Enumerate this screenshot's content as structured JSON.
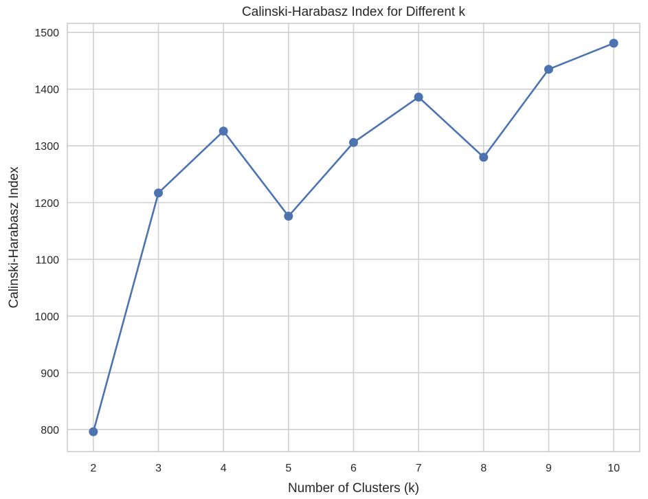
{
  "chart_data": {
    "type": "line",
    "title": "Calinski-Harabasz Index for Different k",
    "xlabel": "Number of Clusters (k)",
    "ylabel": "Calinski-Harabasz Index",
    "x": [
      2,
      3,
      4,
      5,
      6,
      7,
      8,
      9,
      10
    ],
    "series": [
      {
        "values": [
          796,
          1217,
          1326,
          1176,
          1306,
          1386,
          1280,
          1435,
          1481
        ],
        "color": "#4c72b0",
        "marker": "circle"
      }
    ],
    "xticks": [
      "2",
      "3",
      "4",
      "5",
      "6",
      "7",
      "8",
      "9",
      "10"
    ],
    "yticks": [
      "800",
      "900",
      "1000",
      "1100",
      "1200",
      "1300",
      "1400",
      "1500"
    ],
    "xlim": [
      1.6,
      10.4
    ],
    "ylim": [
      761,
      1516
    ],
    "grid": true,
    "colors": {
      "grid": "#d0d0d0",
      "frame": "#cccccc",
      "text": "#262626"
    }
  }
}
